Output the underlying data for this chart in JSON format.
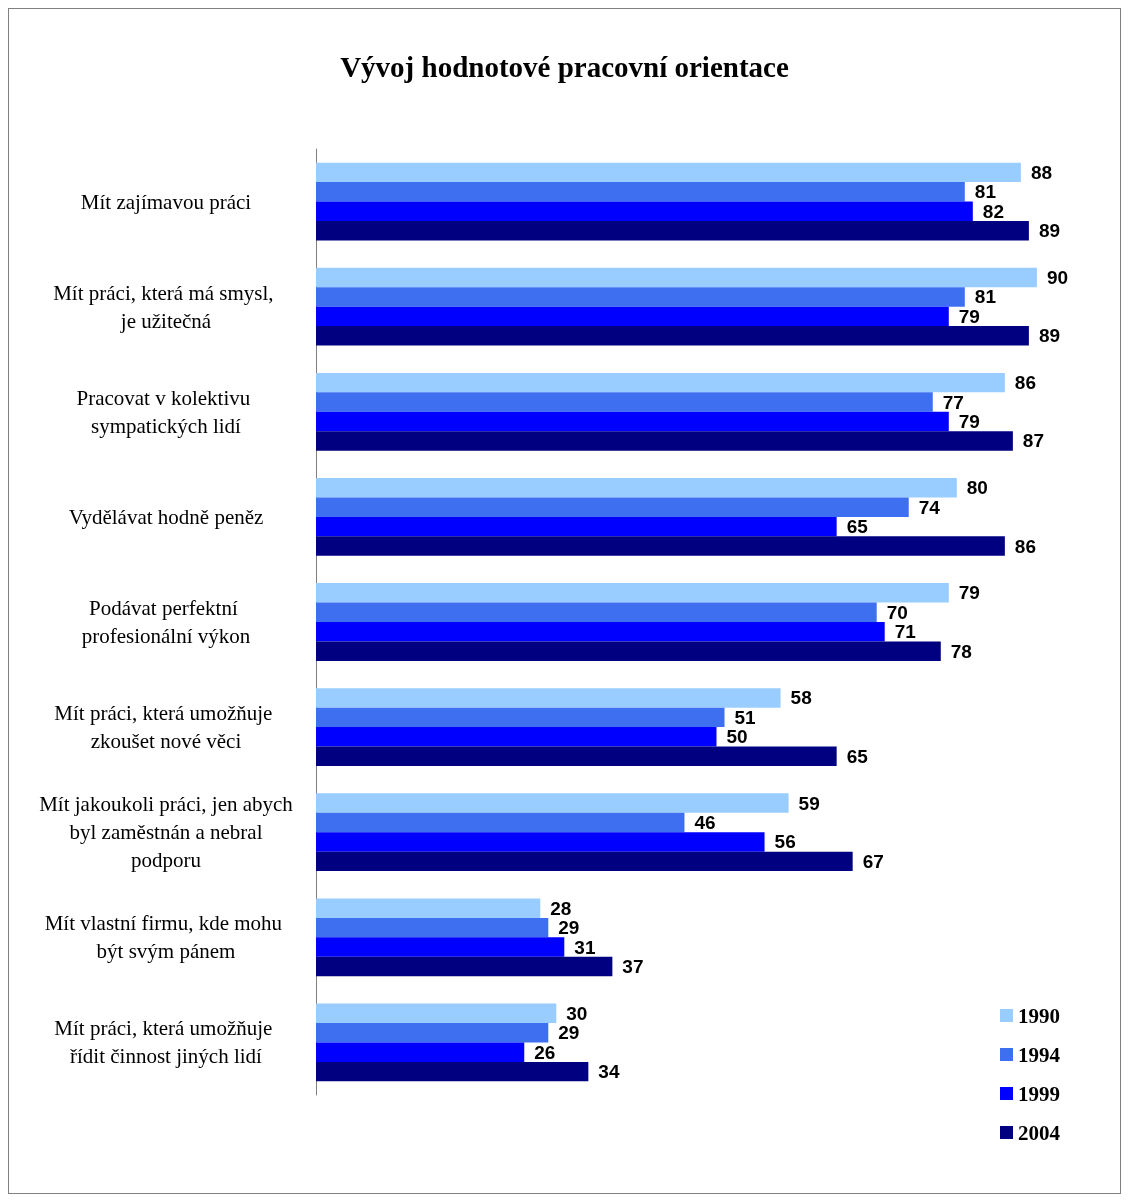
{
  "chart_data": {
    "type": "bar",
    "orientation": "horizontal",
    "title": "Vývoj hodnotové pracovní orientace",
    "categories": [
      "Mít zajímavou práci",
      "Mít práci, která má smysl, je užitečná",
      "Pracovat v kolektivu sympatických lidí",
      "Vydělávat hodně peněz",
      "Podávat perfektní profesionální výkon",
      "Mít práci, která umožňuje zkoušet nové věci",
      "Mít jakoukoli práci, jen abych byl zaměstnán a nebral podporu",
      "Mít vlastní firmu, kde mohu být svým pánem",
      "Mít práci, která umožňuje řídit činnost jiných lidí"
    ],
    "series": [
      {
        "name": "1990",
        "color": "#99ccff",
        "values": [
          88,
          90,
          86,
          80,
          79,
          58,
          59,
          28,
          30
        ]
      },
      {
        "name": "1994",
        "color": "#3d6ff0",
        "values": [
          81,
          81,
          77,
          74,
          70,
          51,
          46,
          29,
          29
        ]
      },
      {
        "name": "1999",
        "color": "#0000ff",
        "values": [
          82,
          79,
          79,
          65,
          71,
          50,
          56,
          31,
          26
        ]
      },
      {
        "name": "2004",
        "color": "#000080",
        "values": [
          89,
          89,
          87,
          86,
          78,
          65,
          67,
          37,
          34
        ]
      }
    ],
    "xlim": [
      0,
      100
    ],
    "tick_labels": "y",
    "data_labels": true,
    "legend": "bottom right"
  }
}
